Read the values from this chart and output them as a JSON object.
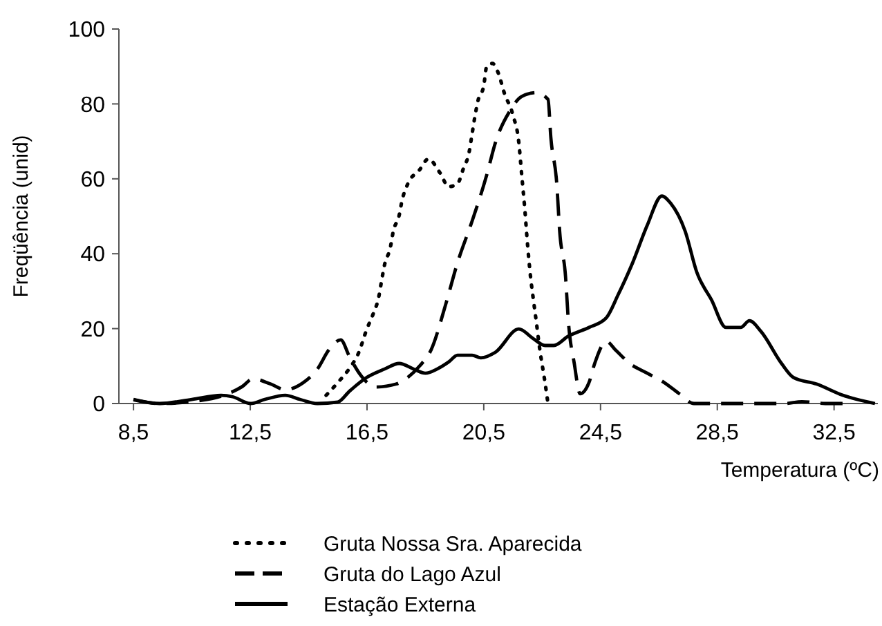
{
  "chart_data": {
    "type": "line",
    "xlabel": "Temperatura (ºC)",
    "ylabel": "Freqüência (unid)",
    "xlim": [
      8,
      34
    ],
    "ylim": [
      0,
      100
    ],
    "xticks": [
      {
        "value": 8.5,
        "label": "8,5"
      },
      {
        "value": 12.5,
        "label": "12,5"
      },
      {
        "value": 16.5,
        "label": "16,5"
      },
      {
        "value": 20.5,
        "label": "20,5"
      },
      {
        "value": 24.5,
        "label": "24,5"
      },
      {
        "value": 28.5,
        "label": "28,5"
      },
      {
        "value": 32.5,
        "label": "32,5"
      }
    ],
    "yticks": [
      0,
      20,
      40,
      60,
      80,
      100
    ],
    "grid": false,
    "legend": "bottom",
    "marker": "none",
    "series": [
      {
        "name": "Gruta Nossa Sra. Aparecida",
        "color": "#000000",
        "line_style": "dotted",
        "x": [
          15.1,
          15.5,
          15.9,
          16.2,
          16.5,
          16.7,
          16.9,
          17,
          17.1,
          17.3,
          17.4,
          17.6,
          17.7,
          17.9,
          18.3,
          18.6,
          19,
          19.3,
          19.6,
          19.8,
          20,
          20.1,
          20.2,
          20.3,
          20.5,
          20.6,
          20.8,
          21,
          21.2,
          21.5,
          21.7,
          21.8,
          21.9,
          22,
          22.1,
          22.2,
          22.3,
          22.4,
          22.6,
          22.7
        ],
        "values": [
          2.2,
          5.6,
          9.4,
          13.3,
          20,
          23.7,
          28.4,
          32.8,
          37,
          41.7,
          46,
          50.2,
          54.2,
          58.7,
          62.4,
          65.3,
          61.6,
          57.9,
          58.7,
          62.7,
          67.2,
          72,
          76.8,
          80.8,
          84.9,
          90,
          90.8,
          88.2,
          83,
          77,
          69.7,
          61,
          52.4,
          42.4,
          34,
          27.7,
          21.8,
          15.5,
          5.5,
          0
        ]
      },
      {
        "name": "Gruta do Lago Azul",
        "color": "#000000",
        "line_style": "dashed",
        "x": [
          8.5,
          9.4,
          10.7,
          11.6,
          12.2,
          12.6,
          13.2,
          13.7,
          14.3,
          14.8,
          15.2,
          15.6,
          15.9,
          16.3,
          16.8,
          17.5,
          17.9,
          18.3,
          18.7,
          19.2,
          19.6,
          20.1,
          20.6,
          20.9,
          21.4,
          21.8,
          22.3,
          22.7,
          22.8,
          23,
          23.1,
          23.3,
          23.4,
          23.6,
          23.8,
          24.1,
          24.3,
          24.7,
          25,
          25.5,
          26.1,
          26.7,
          27.2,
          27.7,
          28.8,
          30.8,
          31.4,
          32.2,
          32.8
        ],
        "values": [
          1,
          0,
          0.7,
          2.2,
          4.4,
          6.6,
          5.2,
          3.7,
          5.5,
          9.2,
          14.4,
          17,
          12.5,
          7.4,
          4.4,
          5.2,
          7,
          10,
          14.4,
          26.6,
          37.6,
          48.7,
          61,
          69.7,
          78.2,
          82,
          83,
          81.2,
          70.8,
          58.7,
          46,
          34,
          21.8,
          10.7,
          2.6,
          5.5,
          10.7,
          16.6,
          14.4,
          10.7,
          8.1,
          5.5,
          2.6,
          0,
          0,
          0,
          0.5,
          0,
          0
        ]
      },
      {
        "name": "Estação Externa",
        "color": "#000000",
        "line_style": "solid",
        "x": [
          8.5,
          9.4,
          10.5,
          11.5,
          11.9,
          12.5,
          13,
          13.7,
          14.2,
          14.8,
          15.5,
          15.9,
          16.5,
          17.1,
          17.6,
          18.1,
          18.5,
          18.9,
          19.3,
          19.6,
          20.1,
          20.4,
          20.9,
          21.7,
          22.2,
          22.6,
          22.9,
          23.4,
          24.1,
          24.7,
          25.1,
          25.6,
          26.1,
          26.6,
          26.9,
          27.4,
          27.8,
          28.3,
          28.8,
          29.3,
          29.6,
          30,
          30.7,
          31.1,
          31.9,
          32.8,
          33.9
        ],
        "values": [
          1.1,
          0,
          1.1,
          2.2,
          1.8,
          0,
          1.1,
          2.2,
          1.1,
          0,
          0.4,
          3.3,
          7,
          9.2,
          10.7,
          9.2,
          8.1,
          9.2,
          11.1,
          12.9,
          12.9,
          12.2,
          13.7,
          19.9,
          17.3,
          15.5,
          15.5,
          18,
          20.3,
          22.9,
          29,
          37.6,
          47.6,
          55.4,
          53.5,
          46,
          35,
          27.7,
          20.3,
          20.3,
          22.1,
          19.2,
          10.7,
          7,
          5.2,
          2.2,
          0
        ]
      }
    ]
  }
}
